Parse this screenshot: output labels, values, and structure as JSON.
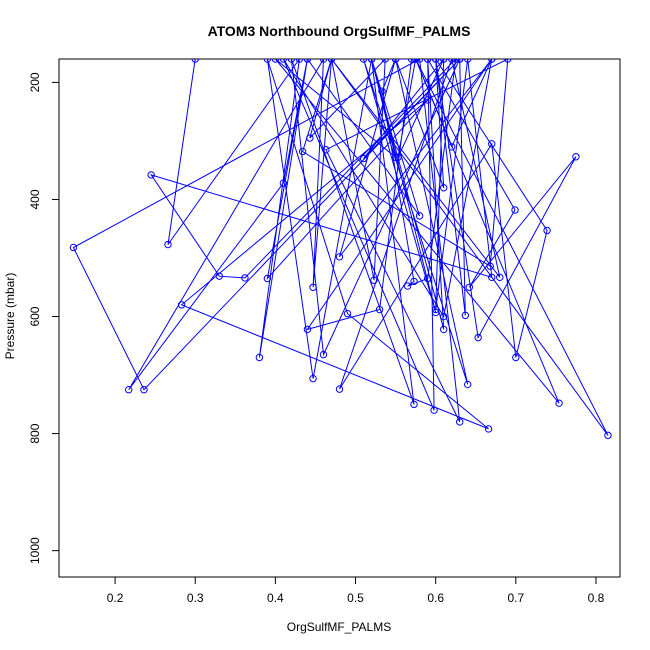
{
  "chart_data": {
    "type": "line",
    "title": "ATOM3 Northbound OrgSulfMF_PALMS",
    "xlabel": "OrgSulfMF_PALMS",
    "ylabel": "Pressure (mbar)",
    "xlim": [
      0.13,
      0.83
    ],
    "ylim": [
      1045,
      160
    ],
    "y_reversed": true,
    "x_ticks": [
      0.2,
      0.3,
      0.4,
      0.5,
      0.6,
      0.7,
      0.8
    ],
    "x_tick_labels": [
      "0.2",
      "0.3",
      "0.4",
      "0.5",
      "0.6",
      "0.7",
      "0.8"
    ],
    "y_ticks": [
      200,
      400,
      600,
      800,
      1000
    ],
    "y_tick_labels": [
      "200",
      "400",
      "600",
      "800",
      "1000"
    ],
    "grid": false,
    "colors": {
      "series": "#0000ff",
      "axis": "#000000"
    },
    "series": [
      {
        "marker": "open-circle",
        "points": [
          [
            0.3,
            160
          ],
          [
            0.266,
            477
          ],
          [
            0.43,
            160
          ],
          [
            0.38,
            670
          ],
          [
            0.44,
            160
          ],
          [
            0.41,
            372
          ],
          [
            0.217,
            725
          ],
          [
            0.46,
            160
          ],
          [
            0.447,
            550
          ],
          [
            0.47,
            160
          ],
          [
            0.443,
            295
          ],
          [
            0.537,
            160
          ],
          [
            0.523,
            538
          ],
          [
            0.47,
            160
          ],
          [
            0.434,
            318
          ],
          [
            0.668,
            514
          ],
          [
            0.69,
            160
          ],
          [
            0.463,
            315
          ],
          [
            0.63,
            780
          ],
          [
            0.58,
            160
          ],
          [
            0.148,
            482
          ],
          [
            0.236,
            725
          ],
          [
            0.63,
            160
          ],
          [
            0.46,
            665
          ],
          [
            0.42,
            160
          ],
          [
            0.573,
            750
          ],
          [
            0.52,
            160
          ],
          [
            0.447,
            706
          ],
          [
            0.39,
            160
          ],
          [
            0.49,
            595
          ],
          [
            0.666,
            792
          ],
          [
            0.283,
            580
          ],
          [
            0.59,
            230
          ],
          [
            0.39,
            535
          ],
          [
            0.44,
            160
          ],
          [
            0.58,
            428
          ],
          [
            0.52,
            160
          ],
          [
            0.55,
            328
          ],
          [
            0.4,
            160
          ],
          [
            0.754,
            748
          ],
          [
            0.575,
            160
          ],
          [
            0.553,
            328
          ],
          [
            0.61,
            160
          ],
          [
            0.51,
            330
          ],
          [
            0.63,
            160
          ],
          [
            0.637,
            598
          ],
          [
            0.6,
            160
          ],
          [
            0.61,
            380
          ],
          [
            0.55,
            160
          ],
          [
            0.64,
            716
          ],
          [
            0.51,
            160
          ],
          [
            0.6,
            593
          ],
          [
            0.52,
            160
          ],
          [
            0.61,
            622
          ],
          [
            0.59,
            160
          ],
          [
            0.598,
            760
          ],
          [
            0.41,
            160
          ],
          [
            0.61,
            600
          ],
          [
            0.67,
            160
          ],
          [
            0.62,
            310
          ],
          [
            0.575,
            160
          ],
          [
            0.815,
            803
          ],
          [
            0.47,
            160
          ],
          [
            0.68,
            533
          ],
          [
            0.62,
            160
          ],
          [
            0.48,
            724
          ],
          [
            0.67,
            305
          ],
          [
            0.7,
            670
          ],
          [
            0.739,
            453
          ],
          [
            0.6,
            160
          ],
          [
            0.653,
            636
          ],
          [
            0.775,
            327
          ],
          [
            0.642,
            550
          ],
          [
            0.699,
            418
          ],
          [
            0.59,
            160
          ],
          [
            0.63,
            160
          ],
          [
            0.55,
            160
          ],
          [
            0.48,
            498
          ],
          [
            0.67,
            160
          ],
          [
            0.44,
            622
          ],
          [
            0.53,
            588
          ],
          [
            0.57,
            160
          ],
          [
            0.55,
            160
          ],
          [
            0.533,
            215
          ],
          [
            0.573,
            540
          ],
          [
            0.565,
            548
          ],
          [
            0.59,
            535
          ],
          [
            0.625,
            160
          ],
          [
            0.362,
            534
          ],
          [
            0.33,
            531
          ],
          [
            0.245,
            358
          ],
          [
            0.67,
            533
          ],
          [
            0.64,
            160
          ],
          [
            0.6,
            588
          ],
          [
            0.61,
            160
          ]
        ]
      }
    ]
  }
}
